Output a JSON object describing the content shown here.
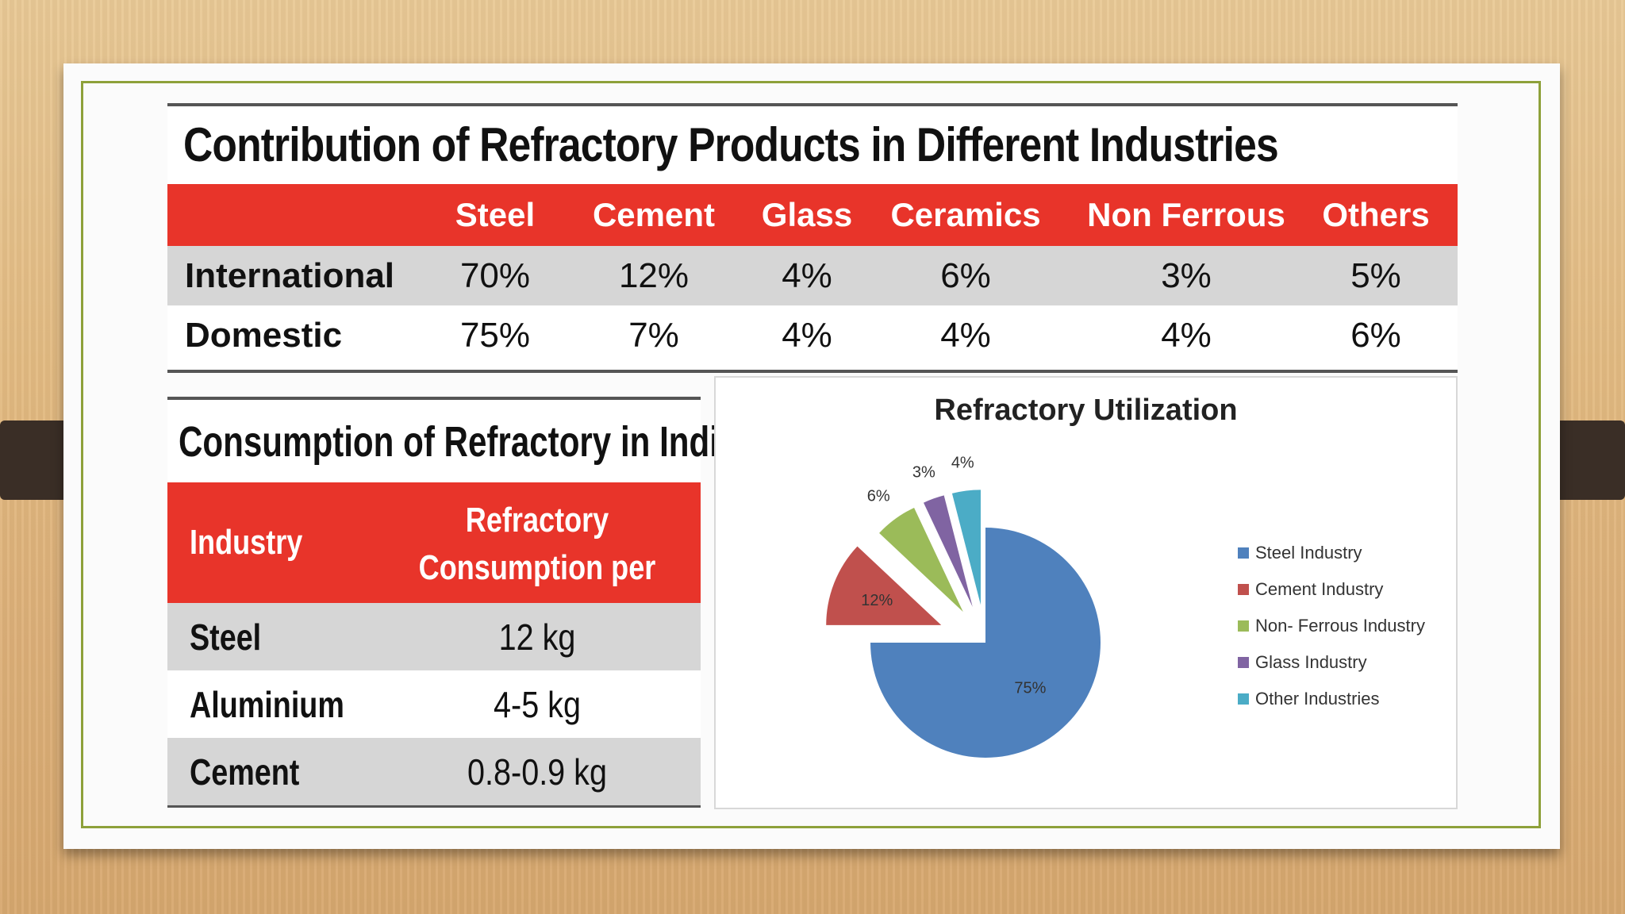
{
  "top_table": {
    "title": "Contribution of Refractory Products in Different Industries",
    "headers": [
      "",
      "Steel",
      "Cement",
      "Glass",
      "Ceramics",
      "Non Ferrous",
      "Others"
    ],
    "rows": [
      {
        "label": "International",
        "values": [
          "70%",
          "12%",
          "4%",
          "6%",
          "3%",
          "5%"
        ]
      },
      {
        "label": "Domestic",
        "values": [
          "75%",
          "7%",
          "4%",
          "4%",
          "4%",
          "6%"
        ]
      }
    ],
    "header_color": "#e8342a"
  },
  "consumption_table": {
    "title": "Consumption of Refractory in India",
    "headers": [
      "Industry",
      "Refractory Consumption per tonne"
    ],
    "rows": [
      {
        "industry": "Steel",
        "value": "12 kg"
      },
      {
        "industry": "Aluminium",
        "value": "4-5 kg"
      },
      {
        "industry": "Cement",
        "value": "0.8-0.9 kg"
      }
    ]
  },
  "chart_data": {
    "type": "pie",
    "title": "Refractory Utilization",
    "slices": [
      {
        "name": "Steel Industry",
        "value": 75,
        "label": "75%",
        "color": "#4f81bd"
      },
      {
        "name": "Cement Industry",
        "value": 12,
        "label": "12%",
        "color": "#c0504d"
      },
      {
        "name": "Non- Ferrous Industry",
        "value": 6,
        "label": "6%",
        "color": "#9bbb59"
      },
      {
        "name": "Glass Industry",
        "value": 3,
        "label": "3%",
        "color": "#8064a2"
      },
      {
        "name": "Other Industries",
        "value": 4,
        "label": "4%",
        "color": "#4bacc6"
      }
    ],
    "exploded": true,
    "legend_position": "right"
  }
}
